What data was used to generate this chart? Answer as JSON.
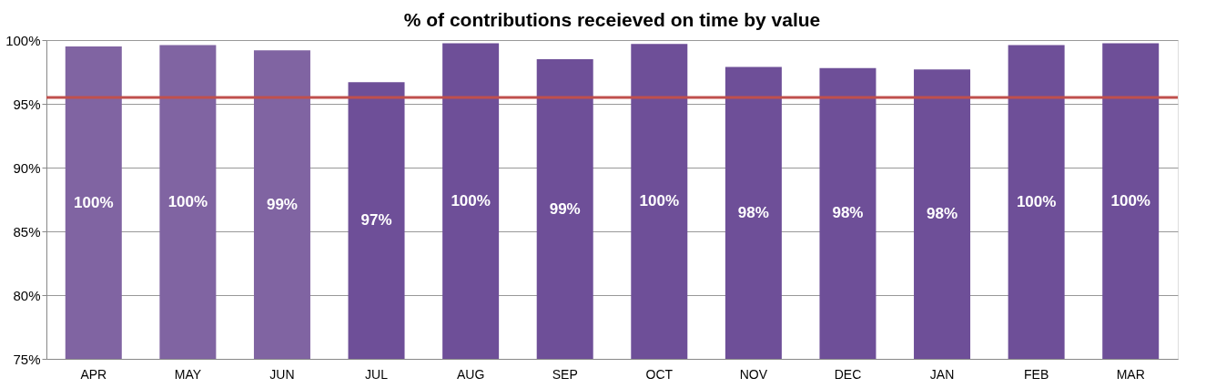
{
  "chart_data": {
    "type": "bar",
    "title": "% of contributions receieved on time by value",
    "categories": [
      "APR",
      "MAY",
      "JUN",
      "JUL",
      "AUG",
      "SEP",
      "OCT",
      "NOV",
      "DEC",
      "JAN",
      "FEB",
      "MAR"
    ],
    "values": [
      99.5,
      99.6,
      99.2,
      96.7,
      99.75,
      98.5,
      99.7,
      97.9,
      97.8,
      97.7,
      99.6,
      99.75
    ],
    "value_labels": [
      "100%",
      "100%",
      "99%",
      "97%",
      "100%",
      "99%",
      "100%",
      "98%",
      "98%",
      "98%",
      "100%",
      "100%"
    ],
    "colors": [
      "#8064a2",
      "#8064a2",
      "#8064a2",
      "#6e4f98",
      "#6e4f98",
      "#6e4f98",
      "#6e4f98",
      "#6e4f98",
      "#6e4f98",
      "#6e4f98",
      "#6e4f98",
      "#6e4f98"
    ],
    "ylim": [
      75,
      100
    ],
    "yticks": [
      {
        "value": 75,
        "label": "75%"
      },
      {
        "value": 80,
        "label": "80%"
      },
      {
        "value": 85,
        "label": "85%"
      },
      {
        "value": 90,
        "label": "90%"
      },
      {
        "value": 95,
        "label": "95%"
      },
      {
        "value": 100,
        "label": "100%"
      }
    ],
    "ref_lines": [
      {
        "axis": "y",
        "value": 95.5,
        "color": "#c0504d",
        "line_style": "solid"
      }
    ],
    "grid": "y"
  }
}
